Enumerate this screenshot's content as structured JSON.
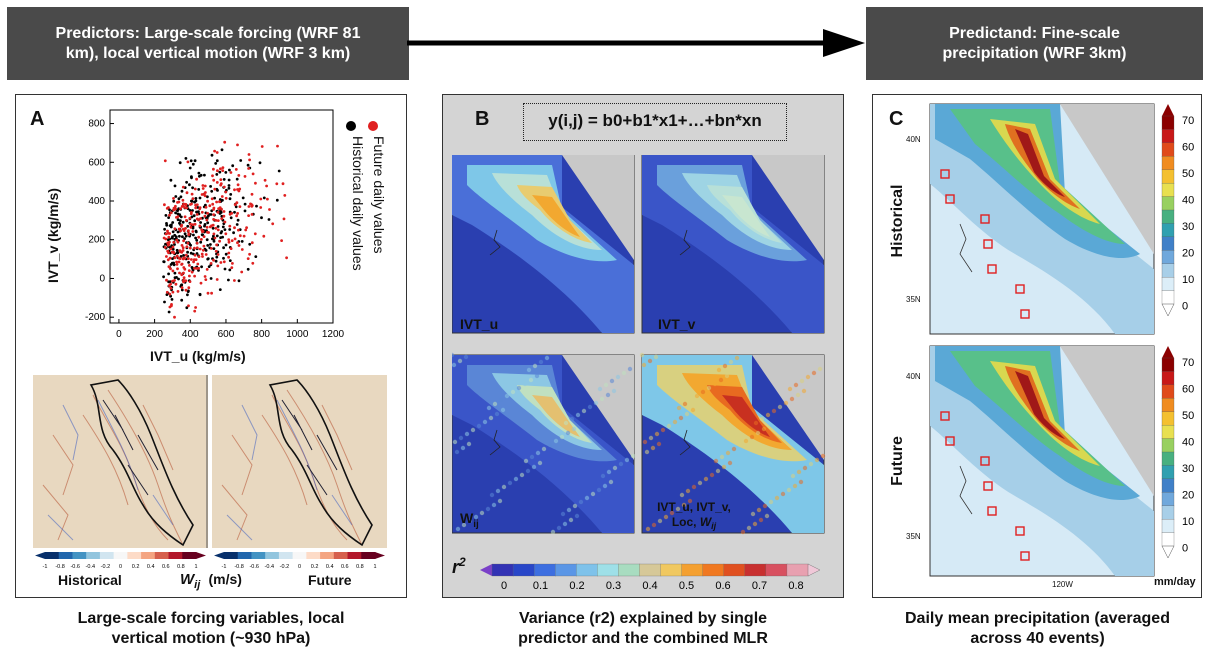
{
  "header_left": "Predictors: Large-scale forcing (WRF 81\nkm), local vertical motion (WRF 3 km)",
  "header_right": "Predictand: Fine-scale\nprecipitation (WRF 3km)",
  "panel_a": {
    "letter": "A",
    "scatter": {
      "type": "scatter",
      "xlabel": "IVT_u (kg/m/s)",
      "ylabel": "IVT_v (kg/m/s)",
      "xticks": [
        "0",
        "200",
        "400",
        "600",
        "800",
        "1000",
        "1200"
      ],
      "yticks": [
        "-200",
        "0",
        "200",
        "400",
        "600",
        "800"
      ],
      "xlim": [
        -50,
        1200
      ],
      "ylim": [
        -230,
        870
      ],
      "legend": [
        "Future daily values",
        "Historical daily values"
      ],
      "colors": {
        "historical": "#000000",
        "future": "#e02020"
      }
    },
    "maps_colorbar_ticks": [
      "-1",
      "-0.8",
      "-0.6",
      "-0.4",
      "-0.2",
      "0",
      "0.2",
      "0.4",
      "0.6",
      "0.8",
      "1"
    ],
    "label_historical": "Historical",
    "label_future": "Future",
    "w_label": "W",
    "w_sub": "ij",
    "w_unit": "(m/s)",
    "caption": "Large-scale forcing variables, local\nvertical motion (~930 hPa)"
  },
  "panel_b": {
    "letter": "B",
    "equation": "y(i,j) = b0+b1*x1+…+bn*xn",
    "map_labels": [
      "IVT_u",
      "IVT_v",
      "W",
      "IVT_u, IVT_v,"
    ],
    "map_label_w_sub": "ij",
    "map_label_combined_line2": "Loc, ",
    "map_label_combined_w": "W",
    "r2_label": "r",
    "r2_sup": "2",
    "colorbar_ticks": [
      "0",
      "0.1",
      "0.2",
      "0.3",
      "0.4",
      "0.5",
      "0.6",
      "0.7",
      "0.8"
    ],
    "caption": "Variance (r2) explained by single\npredictor and the combined MLR"
  },
  "panel_c": {
    "letter": "C",
    "label_historical": "Historical",
    "label_future": "Future",
    "lat_labels": [
      "40N",
      "35N"
    ],
    "lon_label": "120W",
    "colorbar_ticks": [
      "70",
      "60",
      "50",
      "40",
      "30",
      "20",
      "10",
      "0"
    ],
    "unit": "mm/day",
    "caption": "Daily mean precipitation (averaged\nacross 40 events)"
  },
  "colors": {
    "header_bg": "#4a4a4a",
    "panel_bg_b": "#d4d4d4"
  }
}
